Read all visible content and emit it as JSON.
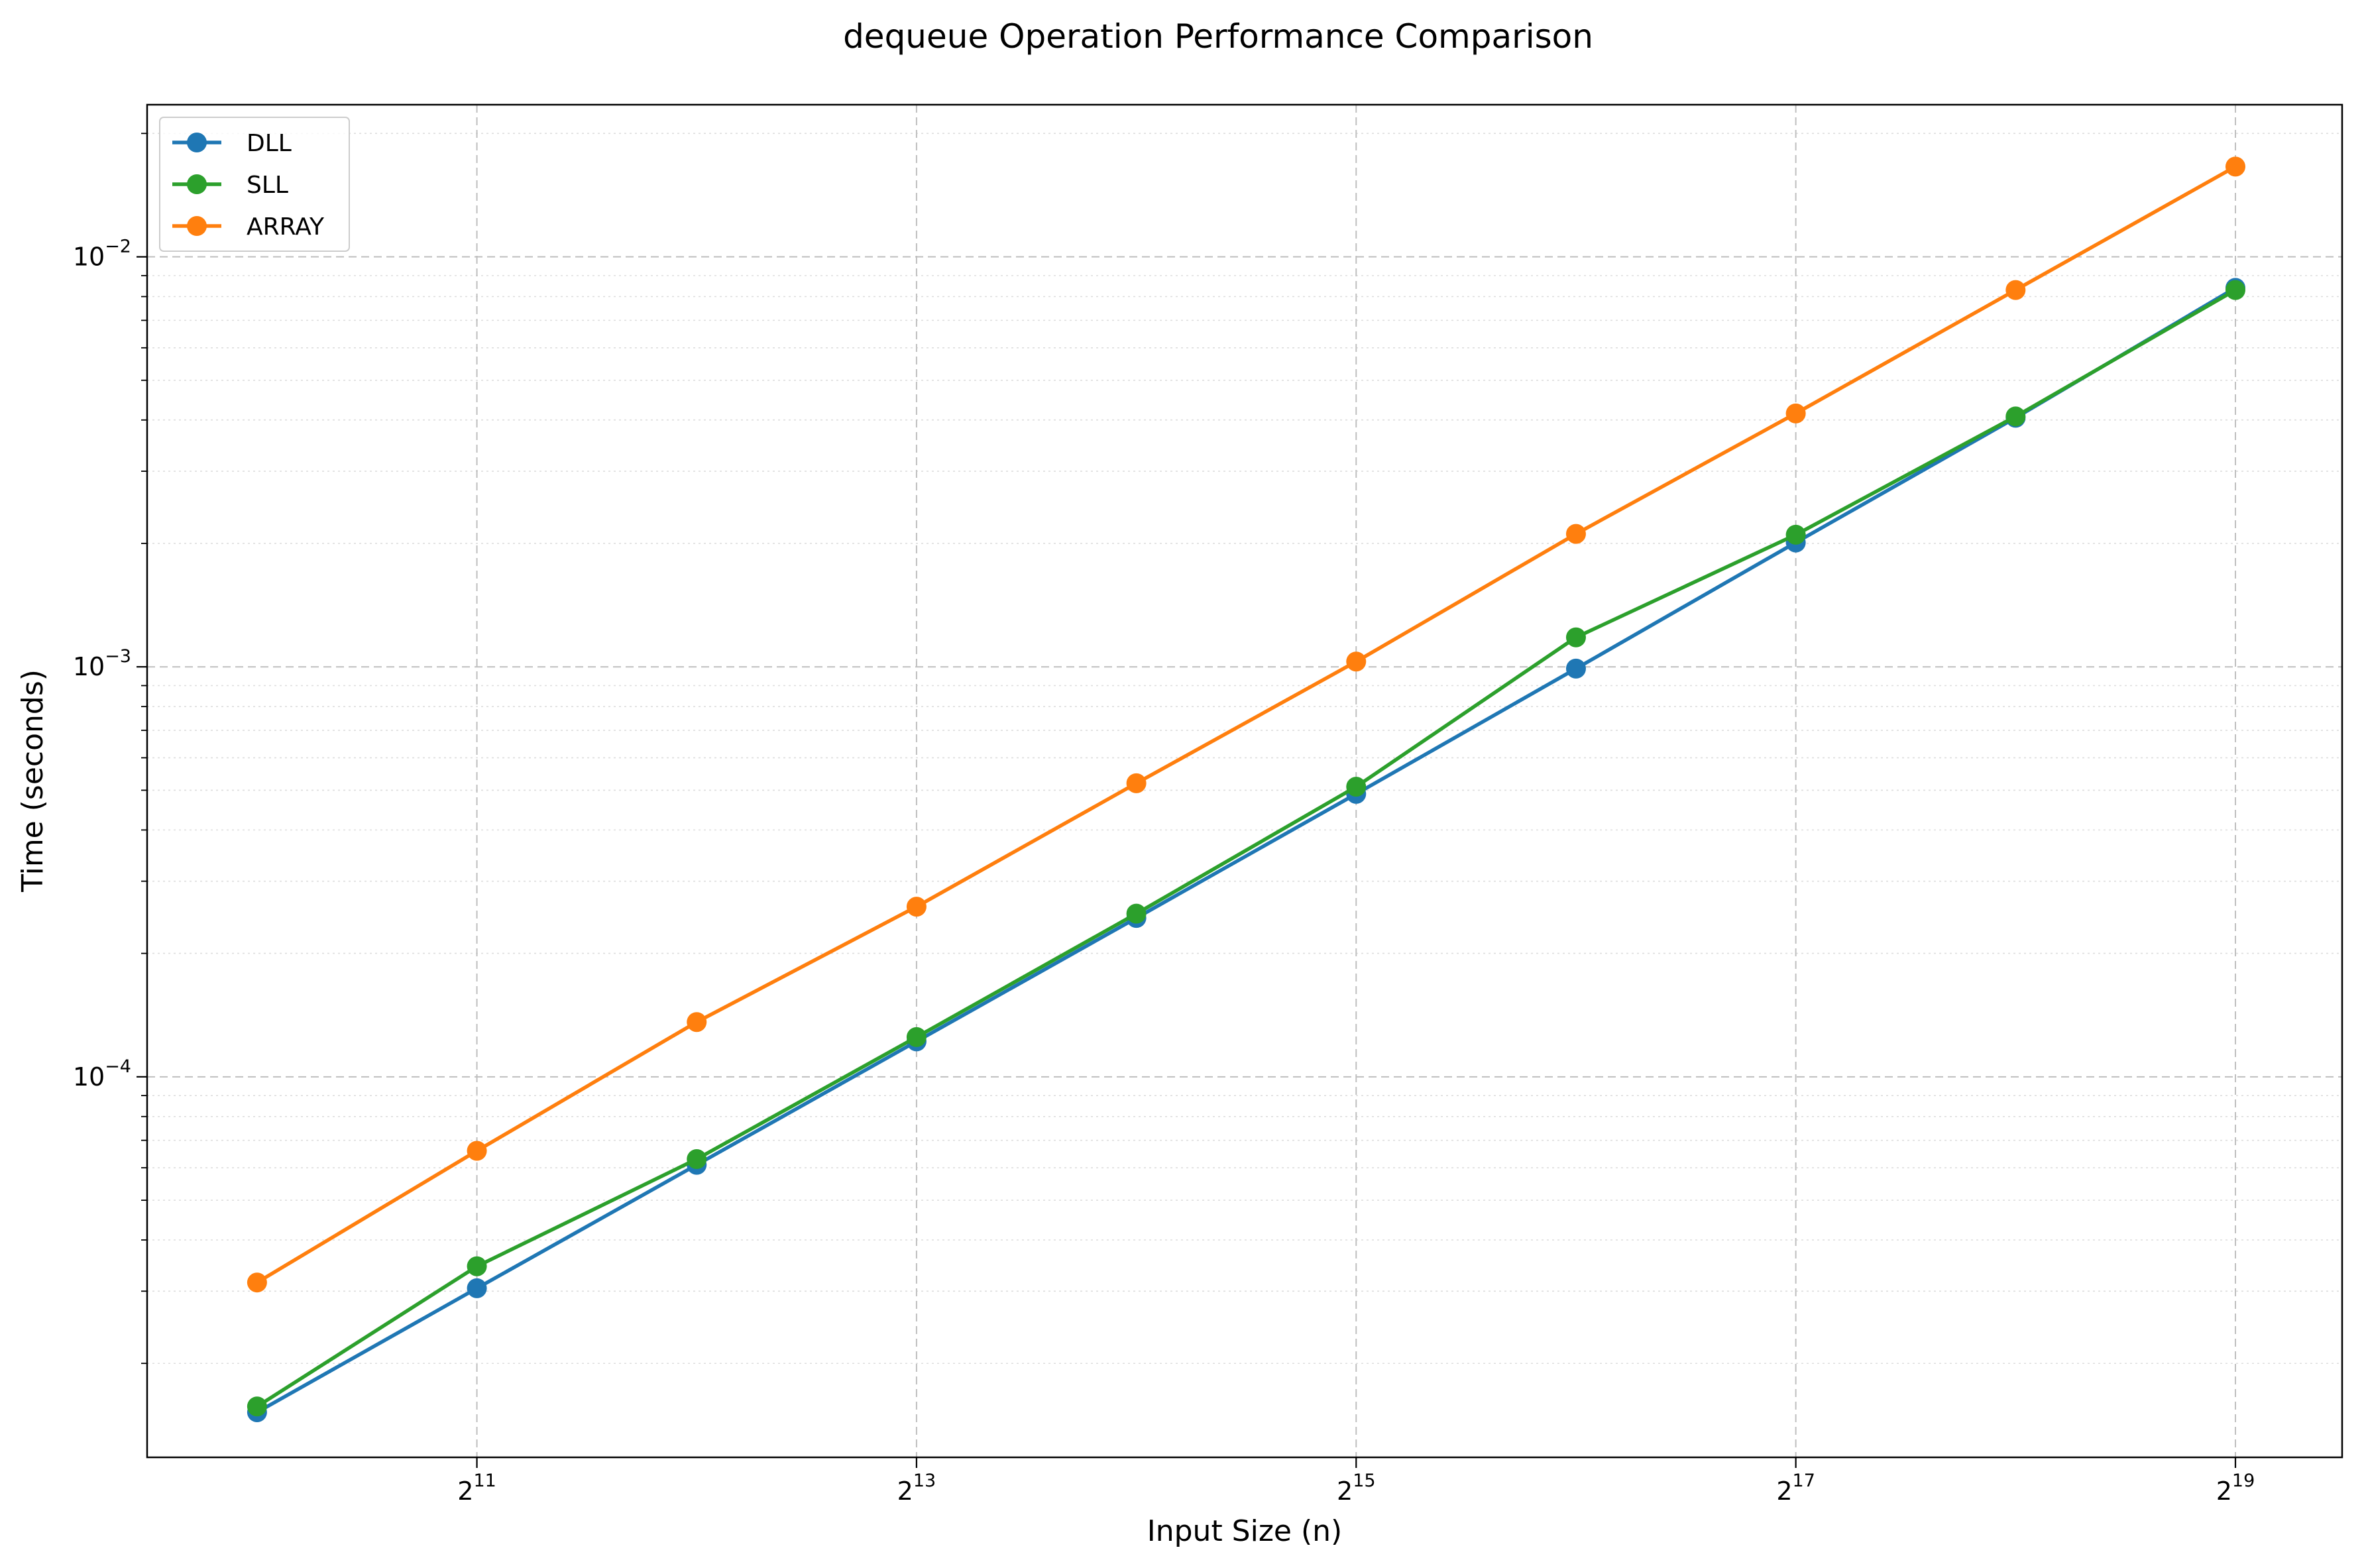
{
  "chart_data": {
    "type": "line",
    "title": "dequeue Operation Performance Comparison",
    "xlabel": "Input Size (n)",
    "ylabel": "Time (seconds)",
    "xscale": "log2",
    "yscale": "log10",
    "x": [
      1024,
      2048,
      4096,
      8192,
      16384,
      32768,
      65536,
      131072,
      262144,
      524288
    ],
    "xlim": [
      724,
      734000
    ],
    "ylim": [
      1.18e-05,
      0.0235
    ],
    "xticks": [
      {
        "value": 2048,
        "base": "2",
        "exp": "11"
      },
      {
        "value": 8192,
        "base": "2",
        "exp": "13"
      },
      {
        "value": 32768,
        "base": "2",
        "exp": "15"
      },
      {
        "value": 131072,
        "base": "2",
        "exp": "17"
      },
      {
        "value": 524288,
        "base": "2",
        "exp": "19"
      }
    ],
    "yticks": [
      {
        "value": 0.0001,
        "base": "10",
        "exp": "−4"
      },
      {
        "value": 0.001,
        "base": "10",
        "exp": "−3"
      },
      {
        "value": 0.01,
        "base": "10",
        "exp": "−2"
      }
    ],
    "grid": true,
    "legend_position": "top-left",
    "series": [
      {
        "name": "DLL",
        "color": "#1f77b4",
        "values": [
          1.52e-05,
          3.05e-05,
          6.1e-05,
          0.000122,
          0.000244,
          0.00049,
          0.00099,
          0.00201,
          0.00405,
          0.0084
        ]
      },
      {
        "name": "SLL",
        "color": "#2ca02c",
        "values": [
          1.57e-05,
          3.45e-05,
          6.3e-05,
          0.000125,
          0.00025,
          0.00051,
          0.00118,
          0.0021,
          0.00408,
          0.0083
        ]
      },
      {
        "name": "ARRAY",
        "color": "#ff7f0e",
        "values": [
          3.15e-05,
          6.6e-05,
          0.000136,
          0.00026,
          0.00052,
          0.00103,
          0.00211,
          0.00415,
          0.0083,
          0.0166
        ]
      }
    ]
  }
}
